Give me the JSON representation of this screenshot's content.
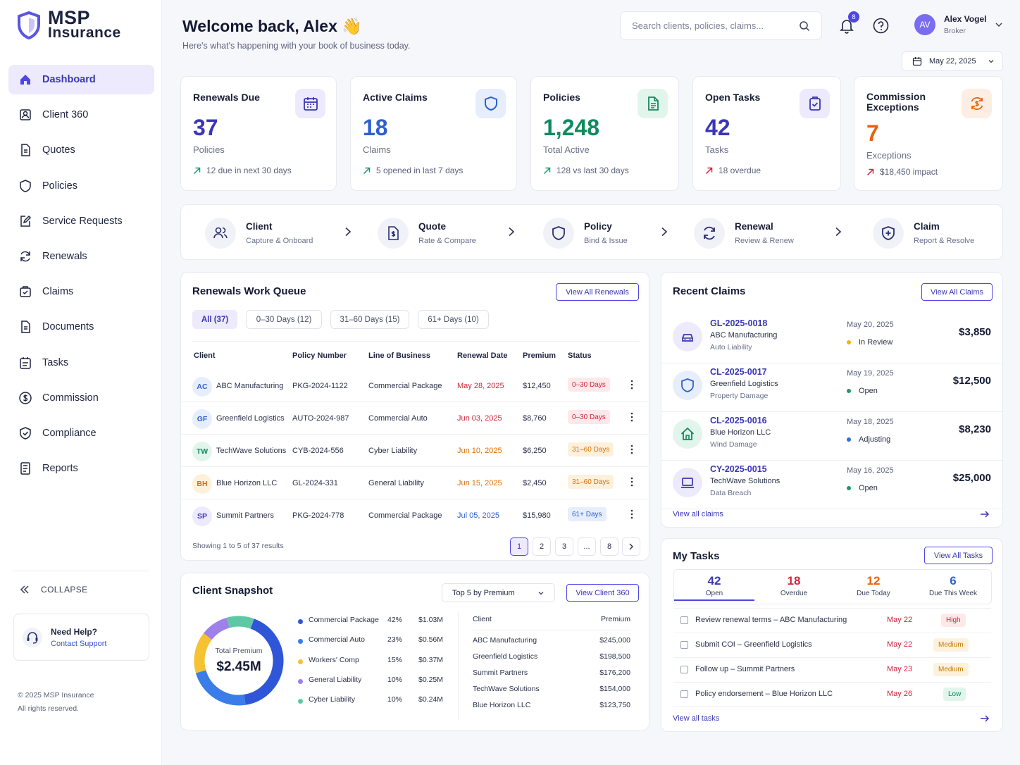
{
  "brand": {
    "line1": "MSP",
    "line2": "Insurance"
  },
  "nav": [
    {
      "label": "Dashboard",
      "icon": "home-icon",
      "active": true
    },
    {
      "label": "Client 360",
      "icon": "client-icon"
    },
    {
      "label": "Quotes",
      "icon": "quote-icon"
    },
    {
      "label": "Policies",
      "icon": "shield-icon"
    },
    {
      "label": "Service Requests",
      "icon": "edit-icon"
    },
    {
      "label": "Renewals",
      "icon": "refresh-icon"
    },
    {
      "label": "Claims",
      "icon": "claims-icon"
    },
    {
      "label": "Documents",
      "icon": "document-icon"
    },
    {
      "label": "Tasks",
      "icon": "tasks-icon"
    },
    {
      "label": "Commission",
      "icon": "dollar-icon"
    },
    {
      "label": "Compliance",
      "icon": "shield-check-icon"
    },
    {
      "label": "Reports",
      "icon": "report-icon"
    }
  ],
  "sidebar": {
    "collapse": "COLLAPSE",
    "help_title": "Need Help?",
    "help_link": "Contact Support",
    "copyright": "© 2025 MSP Insurance",
    "rights": "All rights reserved."
  },
  "header": {
    "welcome": "Welcome back, Alex 👋",
    "subtitle": "Here's what's happening with your book of business today.",
    "search_placeholder": "Search clients, policies, claims...",
    "notif_count": "8",
    "user_initials": "AV",
    "user_name": "Alex Vogel",
    "user_role": "Broker",
    "date": "May 22, 2025"
  },
  "kpis": [
    {
      "title": "Renewals Due",
      "value": "37",
      "unit": "Policies",
      "note": "12 due in next 30 days",
      "color": "#3a36b5",
      "icon": "calendar-icon",
      "icon_bg": "#eceafc",
      "trend": "#1a9a6c"
    },
    {
      "title": "Active Claims",
      "value": "18",
      "unit": "Claims",
      "note": "5 opened in last 7 days",
      "color": "#2f5fd0",
      "icon": "shield-icon",
      "icon_bg": "#e6eefc",
      "trend": "#1a9a6c"
    },
    {
      "title": "Policies",
      "value": "1,248",
      "unit": "Total Active",
      "note": "128 vs last 30 days",
      "color": "#0f8a5f",
      "icon": "document-icon",
      "icon_bg": "#e2f5ec",
      "trend": "#1a9a6c"
    },
    {
      "title": "Open Tasks",
      "value": "42",
      "unit": "Tasks",
      "note": "18 overdue",
      "color": "#3a36b5",
      "icon": "clipboard-check-icon",
      "icon_bg": "#eceafc",
      "trend": "#d0263b"
    },
    {
      "title": "Commission Exceptions",
      "value": "7",
      "unit": "Exceptions",
      "note": "$18,450 impact",
      "color": "#e8610f",
      "icon": "dollar-refresh-icon",
      "icon_bg": "#fdeee3",
      "trend": "#d0263b"
    }
  ],
  "flow": [
    {
      "title": "Client",
      "sub": "Capture & Onboard",
      "icon": "users-icon"
    },
    {
      "title": "Quote",
      "sub": "Rate & Compare",
      "icon": "quote-dollar-icon"
    },
    {
      "title": "Policy",
      "sub": "Bind & Issue",
      "icon": "shield-icon"
    },
    {
      "title": "Renewal",
      "sub": "Review & Renew",
      "icon": "refresh-icon"
    },
    {
      "title": "Claim",
      "sub": "Report & Resolve",
      "icon": "shield-plus-icon"
    }
  ],
  "renewals": {
    "title": "Renewals Work Queue",
    "view_all": "View All Renewals",
    "filters": [
      "All (37)",
      "0–30 Days (12)",
      "31–60 Days (15)",
      "61+ Days (10)"
    ],
    "columns": [
      "Client",
      "Policy Number",
      "Line of Business",
      "Renewal Date",
      "Premium",
      "Status"
    ],
    "rows": [
      {
        "ini": "AC",
        "client": "ABC Manufacturing",
        "policy": "PKG-2024-1122",
        "lob": "Commercial Package",
        "date": "May 28, 2025",
        "premium": "$12,450",
        "status": "0–30 Days",
        "tone": "red"
      },
      {
        "ini": "GF",
        "client": "Greenfield Logistics",
        "policy": "AUTO-2024-987",
        "lob": "Commercial Auto",
        "date": "Jun 03, 2025",
        "premium": "$8,760",
        "status": "0–30 Days",
        "tone": "red"
      },
      {
        "ini": "TW",
        "client": "TechWave Solutions",
        "policy": "CYB-2024-556",
        "lob": "Cyber Liability",
        "date": "Jun 10, 2025",
        "premium": "$6,250",
        "status": "31–60 Days",
        "tone": "orange"
      },
      {
        "ini": "BH",
        "client": "Blue Horizon LLC",
        "policy": "GL-2024-331",
        "lob": "General Liability",
        "date": "Jun 15, 2025",
        "premium": "$2,450",
        "status": "31–60 Days",
        "tone": "orange"
      },
      {
        "ini": "SP",
        "client": "Summit Partners",
        "policy": "PKG-2024-778",
        "lob": "Commercial Package",
        "date": "Jul 05, 2025",
        "premium": "$15,980",
        "status": "61+ Days",
        "tone": "blue"
      }
    ],
    "showing": "Showing 1 to 5 of 37 results",
    "pages": [
      "1",
      "2",
      "3",
      "...",
      "8"
    ]
  },
  "recent_claims": {
    "title": "Recent Claims",
    "view_all": "View All Claims",
    "footer": "View all claims",
    "items": [
      {
        "id": "GL-2025-0018",
        "client": "ABC Manufacturing",
        "type": "Auto Liability",
        "date": "May 20, 2025",
        "status": "In Review",
        "status_color": "#f5b400",
        "amount": "$3,850",
        "icon": "car-icon",
        "icon_bg": "#eceafc"
      },
      {
        "id": "CL-2025-0017",
        "client": "Greenfield Logistics",
        "type": "Property Damage",
        "date": "May 19, 2025",
        "status": "Open",
        "status_color": "#1a9a6c",
        "amount": "$12,500",
        "icon": "shield-icon",
        "icon_bg": "#e6eefc"
      },
      {
        "id": "CL-2025-0016",
        "client": "Blue Horizon LLC",
        "type": "Wind Damage",
        "date": "May 18, 2025",
        "status": "Adjusting",
        "status_color": "#2f6ee0",
        "amount": "$8,230",
        "icon": "house-icon",
        "icon_bg": "#e2f5ec"
      },
      {
        "id": "CY-2025-0015",
        "client": "TechWave Solutions",
        "type": "Data Breach",
        "date": "May 16, 2025",
        "status": "Open",
        "status_color": "#1a9a6c",
        "amount": "$25,000",
        "icon": "laptop-icon",
        "icon_bg": "#eceafc"
      }
    ]
  },
  "snapshot": {
    "title": "Client Snapshot",
    "select": "Top 5 by Premium",
    "view_btn": "View Client 360",
    "total_label": "Total Premium",
    "total_value": "$2.45M",
    "segments": [
      {
        "name": "Commercial Package",
        "pct": "42%",
        "amount": "$1.03M",
        "value": 42,
        "color": "#2f56d8"
      },
      {
        "name": "Commercial Auto",
        "pct": "23%",
        "amount": "$0.56M",
        "value": 23,
        "color": "#3a7de8"
      },
      {
        "name": "Workers' Comp",
        "pct": "15%",
        "amount": "$0.37M",
        "value": 15,
        "color": "#f5c232"
      },
      {
        "name": "General Liability",
        "pct": "10%",
        "amount": "$0.25M",
        "value": 10,
        "color": "#9d80ea"
      },
      {
        "name": "Cyber Liability",
        "pct": "10%",
        "amount": "$0.24M",
        "value": 10,
        "color": "#5ec8a4"
      }
    ],
    "table_head": [
      "Client",
      "Premium"
    ],
    "clients": [
      {
        "name": "ABC Manufacturing",
        "premium": "$245,000"
      },
      {
        "name": "Greenfield Logistics",
        "premium": "$198,500"
      },
      {
        "name": "Summit Partners",
        "premium": "$176,200"
      },
      {
        "name": "TechWave Solutions",
        "premium": "$154,000"
      },
      {
        "name": "Blue Horizon LLC",
        "premium": "$123,750"
      }
    ]
  },
  "tasks": {
    "title": "My Tasks",
    "view_all": "View All Tasks",
    "footer": "View all tasks",
    "tabs": [
      {
        "value": "42",
        "label": "Open",
        "color": "#3a36b5"
      },
      {
        "value": "18",
        "label": "Overdue",
        "color": "#d0263b"
      },
      {
        "value": "12",
        "label": "Due Today",
        "color": "#e8610f"
      },
      {
        "value": "6",
        "label": "Due This Week",
        "color": "#2f5fd0"
      }
    ],
    "items": [
      {
        "text": "Review renewal terms – ABC Manufacturing",
        "due": "May 22",
        "priority": "High",
        "bg": "#fde8ea",
        "fg": "#d0263b"
      },
      {
        "text": "Submit COI – Greenfield Logistics",
        "due": "May 22",
        "priority": "Medium",
        "bg": "#fdf1dc",
        "fg": "#c97a06"
      },
      {
        "text": "Follow up – Summit Partners",
        "due": "May 23",
        "priority": "Medium",
        "bg": "#fdf1dc",
        "fg": "#c97a06"
      },
      {
        "text": "Policy endorsement – Blue Horizon LLC",
        "due": "May 26",
        "priority": "Low",
        "bg": "#e2f5ec",
        "fg": "#0f8a5f"
      }
    ]
  }
}
